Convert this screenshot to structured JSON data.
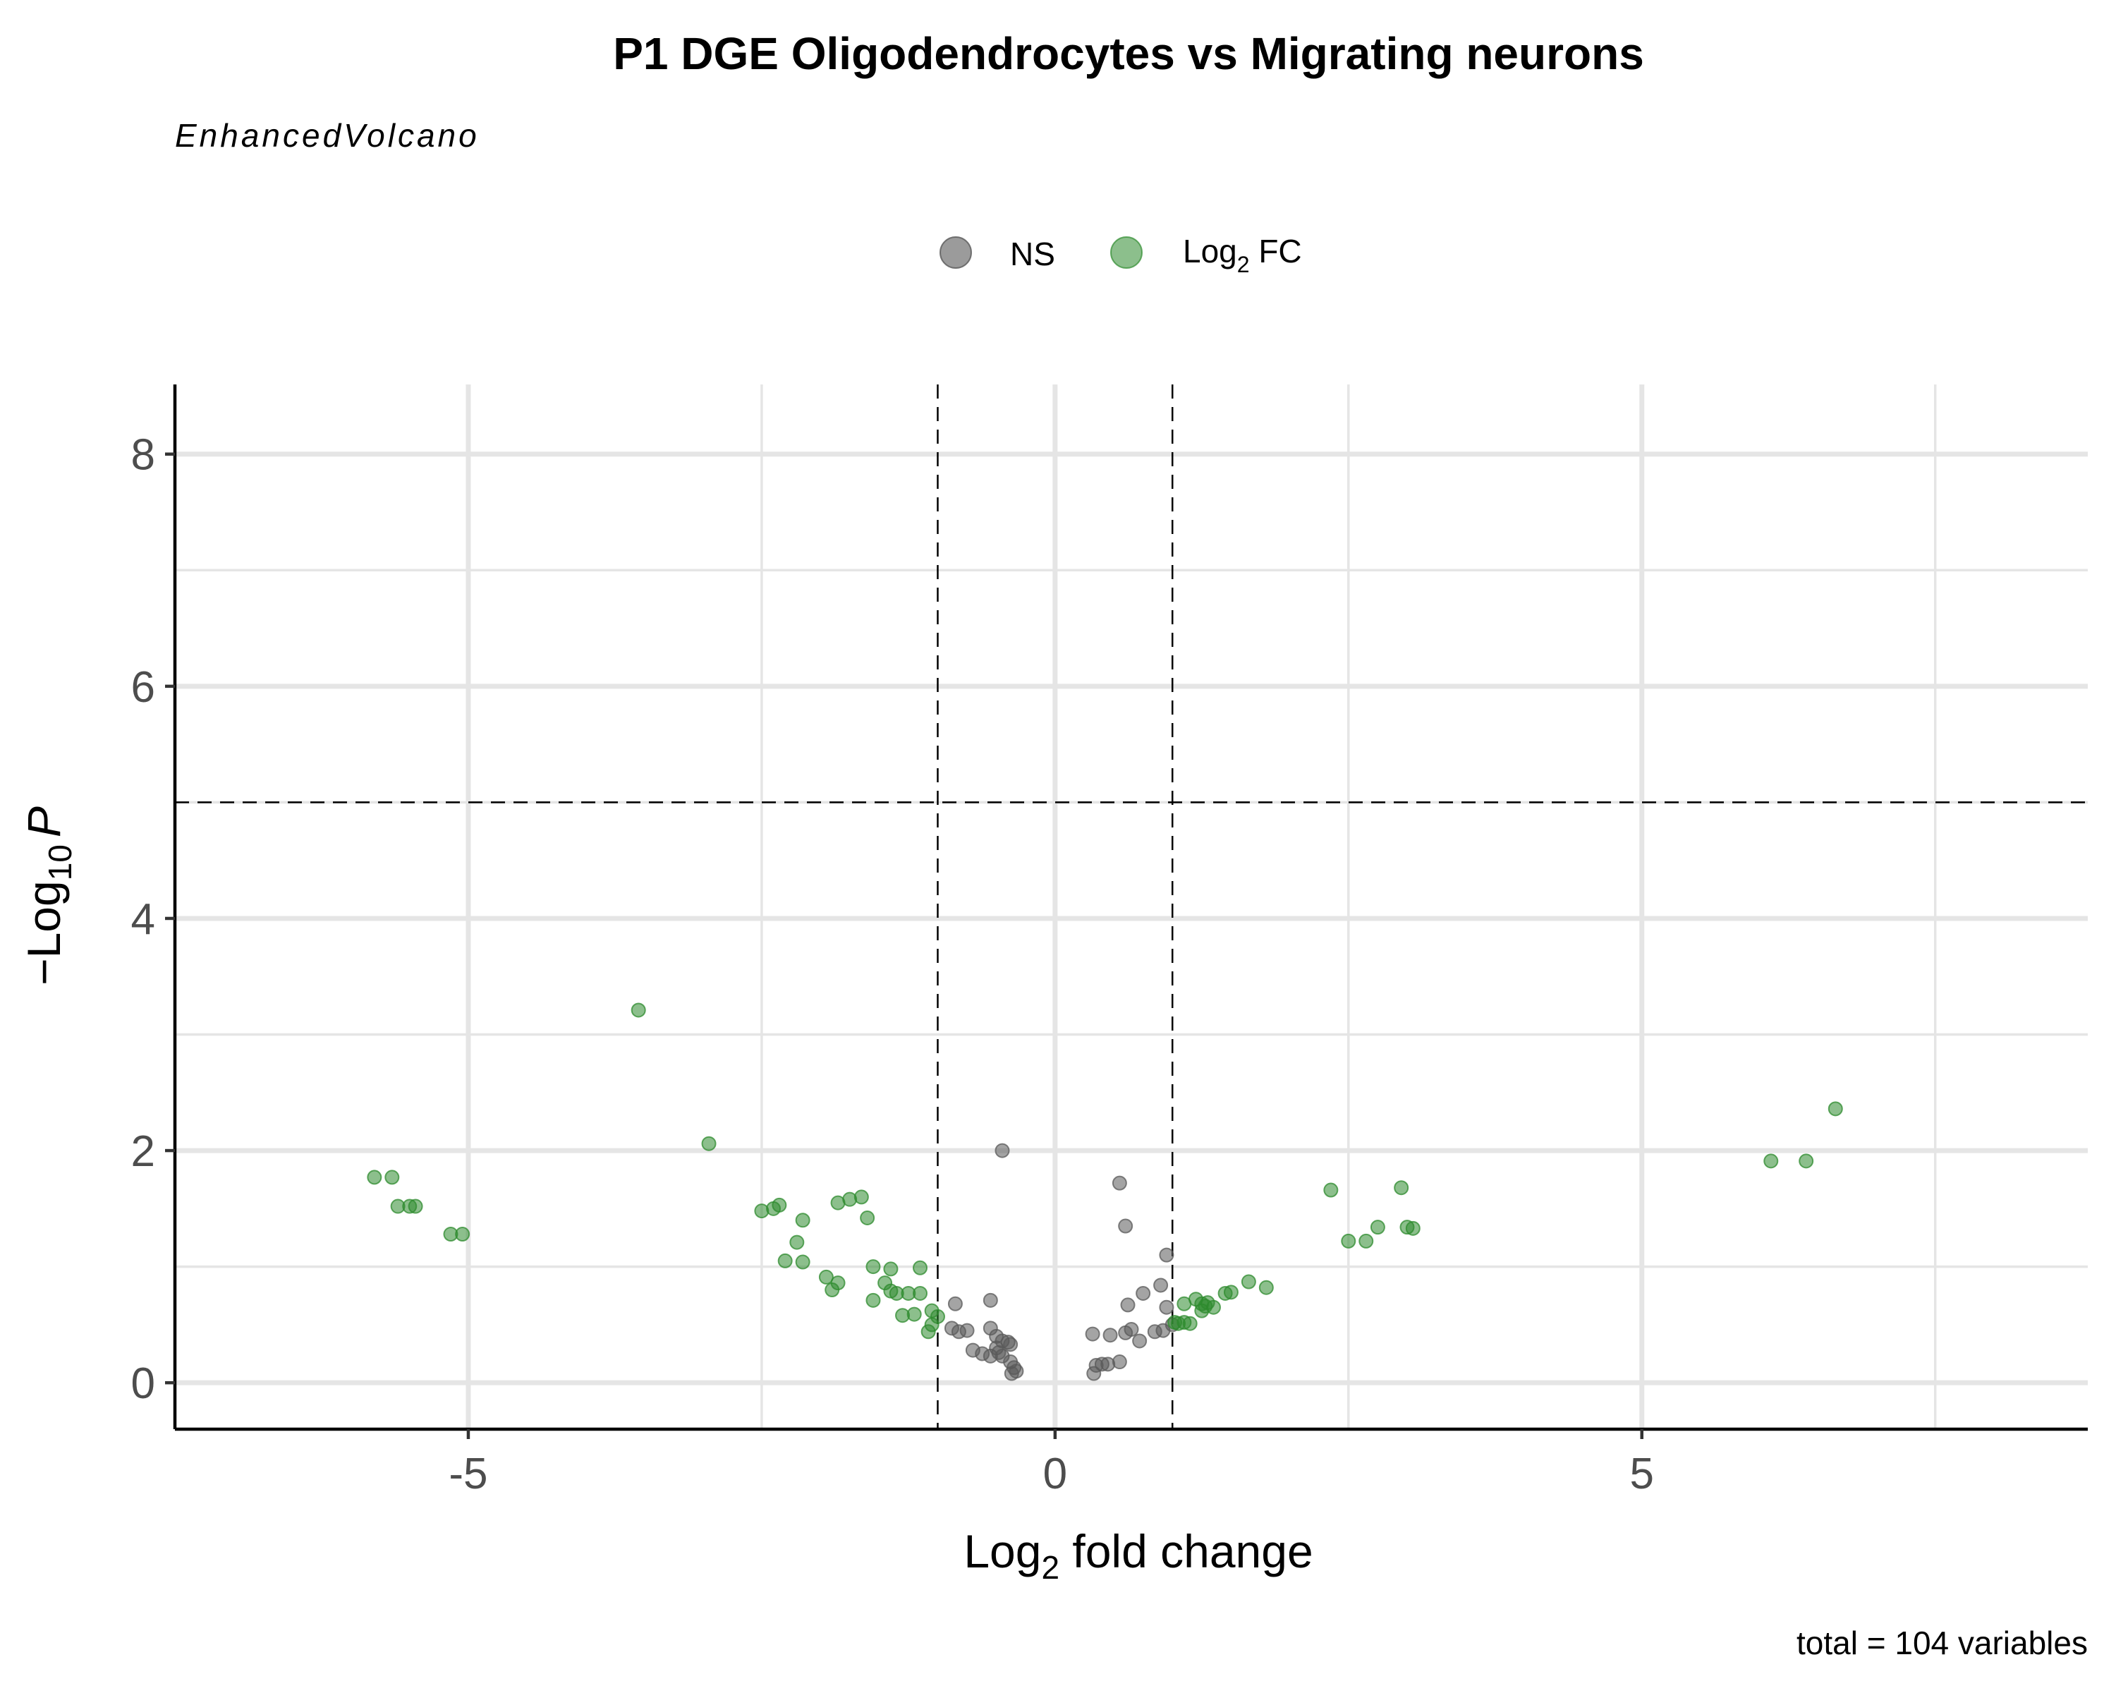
{
  "chart_data": {
    "type": "scatter",
    "title": "P1 DGE Oligodendrocytes vs Migrating neurons",
    "subtitle": "EnhancedVolcano",
    "xlabel": {
      "base": "Log",
      "sub": "2",
      "rest": " fold change"
    },
    "ylabel": {
      "prefix": "−Log",
      "sub": "10",
      "italic": "P"
    },
    "caption": "total = 104 variables",
    "xlim": [
      -7.5,
      8.8
    ],
    "ylim": [
      -0.4,
      8.6
    ],
    "x_ticks": [
      -5,
      0,
      5
    ],
    "x_tick_labels": [
      "-5",
      "0",
      "5"
    ],
    "y_ticks": [
      0,
      2,
      4,
      6,
      8
    ],
    "y_tick_labels": [
      "0",
      "2",
      "4",
      "6",
      "8"
    ],
    "x_minor_ticks": [
      -7.5,
      -2.5,
      2.5,
      7.5
    ],
    "y_minor_ticks": [
      1,
      3,
      5,
      7
    ],
    "grid": true,
    "fc_cutoff": [
      -1,
      1
    ],
    "p_cutoff_log10": 5,
    "legend_position": "top",
    "legend": [
      {
        "key": "NS",
        "label": "NS",
        "color": "#595959"
      },
      {
        "key": "FC",
        "label": {
          "base": "Log",
          "sub": "2",
          "rest": " FC"
        },
        "color": "#2e8b2e"
      }
    ],
    "series": [
      {
        "key": "NS",
        "color": "#595959",
        "points": [
          [
            -0.45,
            2.0
          ],
          [
            0.55,
            1.72
          ],
          [
            0.6,
            1.35
          ],
          [
            0.95,
            1.1
          ],
          [
            0.9,
            0.84
          ],
          [
            0.75,
            0.77
          ],
          [
            0.62,
            0.67
          ],
          [
            0.95,
            0.65
          ],
          [
            1.0,
            0.5
          ],
          [
            0.92,
            0.45
          ],
          [
            0.85,
            0.44
          ],
          [
            0.65,
            0.46
          ],
          [
            0.6,
            0.43
          ],
          [
            0.72,
            0.36
          ],
          [
            0.55,
            0.18
          ],
          [
            0.47,
            0.41
          ],
          [
            0.32,
            0.42
          ],
          [
            0.45,
            0.16
          ],
          [
            0.4,
            0.16
          ],
          [
            0.35,
            0.15
          ],
          [
            0.33,
            0.08
          ],
          [
            -0.55,
            0.71
          ],
          [
            -0.85,
            0.68
          ],
          [
            -0.88,
            0.47
          ],
          [
            -0.82,
            0.44
          ],
          [
            -0.75,
            0.45
          ],
          [
            -0.55,
            0.47
          ],
          [
            -0.5,
            0.4
          ],
          [
            -0.45,
            0.36
          ],
          [
            -0.4,
            0.35
          ],
          [
            -0.38,
            0.33
          ],
          [
            -0.5,
            0.3
          ],
          [
            -0.7,
            0.28
          ],
          [
            -0.55,
            0.23
          ],
          [
            -0.45,
            0.23
          ],
          [
            -0.38,
            0.18
          ],
          [
            -0.35,
            0.13
          ],
          [
            -0.33,
            0.1
          ],
          [
            -0.37,
            0.08
          ],
          [
            -0.48,
            0.26
          ],
          [
            -0.62,
            0.25
          ]
        ]
      },
      {
        "key": "FC",
        "color": "#2e8b2e",
        "points": [
          [
            -3.55,
            3.21
          ],
          [
            -2.95,
            2.06
          ],
          [
            -5.8,
            1.77
          ],
          [
            -5.65,
            1.77
          ],
          [
            -5.6,
            1.52
          ],
          [
            -5.5,
            1.52
          ],
          [
            -5.45,
            1.52
          ],
          [
            -5.15,
            1.28
          ],
          [
            -5.05,
            1.28
          ],
          [
            -2.5,
            1.48
          ],
          [
            -2.4,
            1.5
          ],
          [
            -2.35,
            1.53
          ],
          [
            -2.15,
            1.4
          ],
          [
            -2.2,
            1.21
          ],
          [
            -2.3,
            1.05
          ],
          [
            -2.15,
            1.04
          ],
          [
            -1.85,
            1.55
          ],
          [
            -1.75,
            1.58
          ],
          [
            -1.65,
            1.6
          ],
          [
            -1.6,
            1.42
          ],
          [
            -1.55,
            1.0
          ],
          [
            -1.4,
            0.98
          ],
          [
            -1.15,
            0.99
          ],
          [
            -1.95,
            0.91
          ],
          [
            -1.85,
            0.86
          ],
          [
            -1.9,
            0.8
          ],
          [
            -1.45,
            0.86
          ],
          [
            -1.4,
            0.79
          ],
          [
            -1.35,
            0.77
          ],
          [
            -1.25,
            0.77
          ],
          [
            -1.15,
            0.77
          ],
          [
            -1.3,
            0.58
          ],
          [
            -1.2,
            0.59
          ],
          [
            -1.05,
            0.62
          ],
          [
            -1.0,
            0.57
          ],
          [
            -1.05,
            0.5
          ],
          [
            -1.08,
            0.44
          ],
          [
            -1.55,
            0.71
          ],
          [
            2.35,
            1.66
          ],
          [
            2.95,
            1.68
          ],
          [
            2.75,
            1.34
          ],
          [
            3.0,
            1.34
          ],
          [
            3.05,
            1.33
          ],
          [
            2.5,
            1.22
          ],
          [
            2.65,
            1.22
          ],
          [
            6.65,
            2.36
          ],
          [
            6.1,
            1.91
          ],
          [
            6.4,
            1.91
          ],
          [
            1.1,
            0.68
          ],
          [
            1.25,
            0.68
          ],
          [
            1.35,
            0.65
          ],
          [
            1.45,
            0.77
          ],
          [
            1.5,
            0.78
          ],
          [
            1.65,
            0.87
          ],
          [
            1.8,
            0.82
          ],
          [
            1.25,
            0.62
          ],
          [
            1.1,
            0.52
          ],
          [
            1.05,
            0.51
          ],
          [
            1.3,
            0.69
          ],
          [
            1.2,
            0.72
          ],
          [
            1.28,
            0.66
          ],
          [
            1.02,
            0.52
          ],
          [
            1.15,
            0.51
          ]
        ]
      }
    ]
  }
}
